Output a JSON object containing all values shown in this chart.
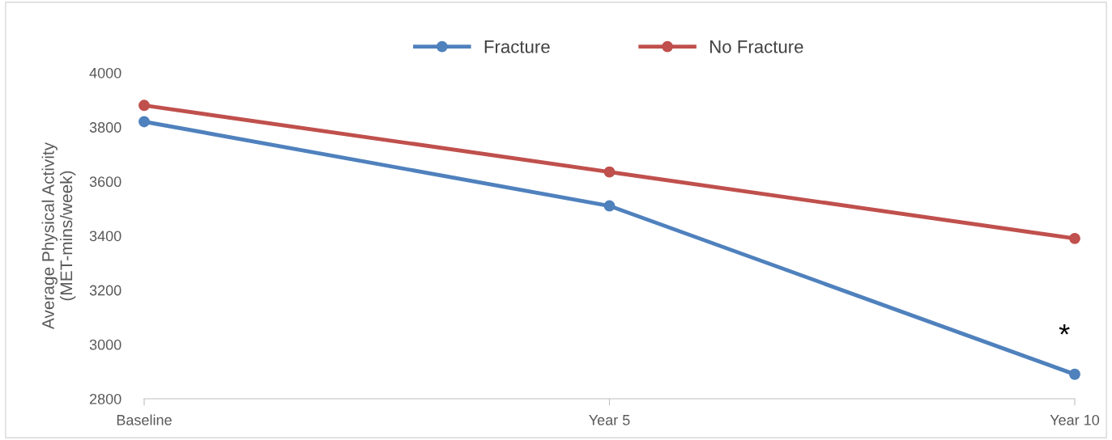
{
  "chart_data": {
    "type": "line",
    "ylabel": "Average Physical Activity\n(MET-mins/week)",
    "categories": [
      "Baseline",
      "Year 5",
      "Year 10"
    ],
    "series": [
      {
        "name": "Fracture",
        "color": "#4f81bd",
        "values": [
          3820,
          3510,
          2890
        ]
      },
      {
        "name": "No Fracture",
        "color": "#c0504d",
        "values": [
          3880,
          3635,
          3390
        ]
      }
    ],
    "ylim": [
      2800,
      4000
    ],
    "yticks": [
      2800,
      3000,
      3200,
      3400,
      3600,
      3800,
      4000
    ],
    "marker": "circle",
    "line_style": "solid",
    "grid": false,
    "legend": "top",
    "annotations": [
      "*"
    ]
  }
}
